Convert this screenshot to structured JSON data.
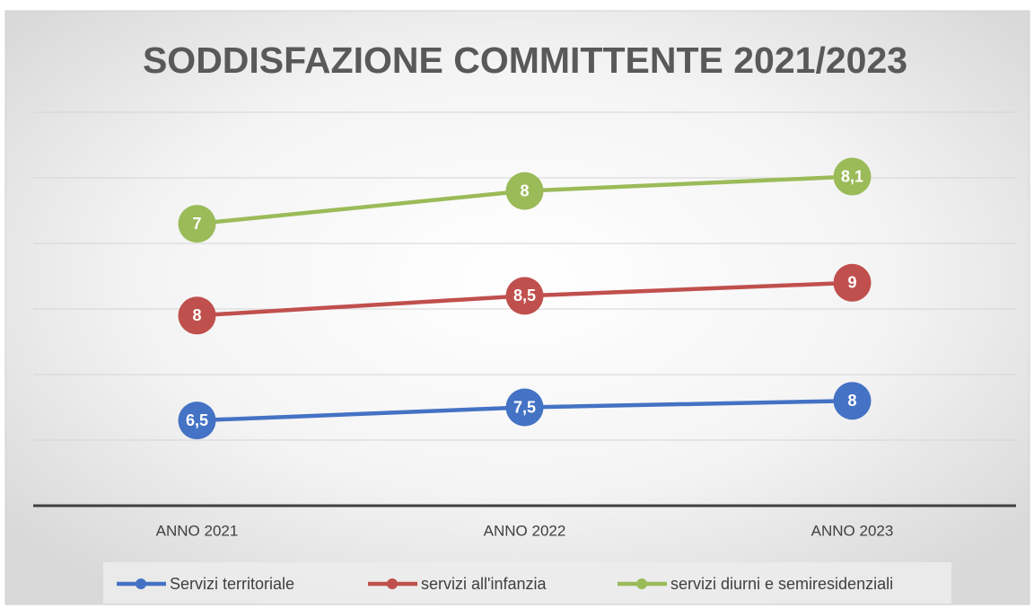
{
  "chart_data": {
    "type": "line",
    "stacked": true,
    "title": "SODDISFAZIONE COMMITTENTE 2021/2023",
    "categories": [
      "ANNO 2021",
      "ANNO 2022",
      "ANNO 2023"
    ],
    "series": [
      {
        "name": "Servizi territoriale",
        "color": "#4472c4",
        "values": [
          6.5,
          7.5,
          8
        ],
        "value_labels": [
          "6,5",
          "7,5",
          "8"
        ]
      },
      {
        "name": "servizi all'infanzia",
        "color": "#c0504d",
        "values": [
          8,
          8.5,
          9
        ],
        "value_labels": [
          "8",
          "8,5",
          "9"
        ]
      },
      {
        "name": "servizi diurni e semiresidenziali",
        "color": "#9bbb59",
        "values": [
          7,
          8,
          8.1
        ],
        "value_labels": [
          "7",
          "8",
          "8,1"
        ]
      }
    ],
    "ylim": [
      0,
      30
    ],
    "yticks": [
      0,
      5,
      10,
      15,
      20,
      25,
      30
    ],
    "grid": true,
    "legend": "bottom"
  }
}
